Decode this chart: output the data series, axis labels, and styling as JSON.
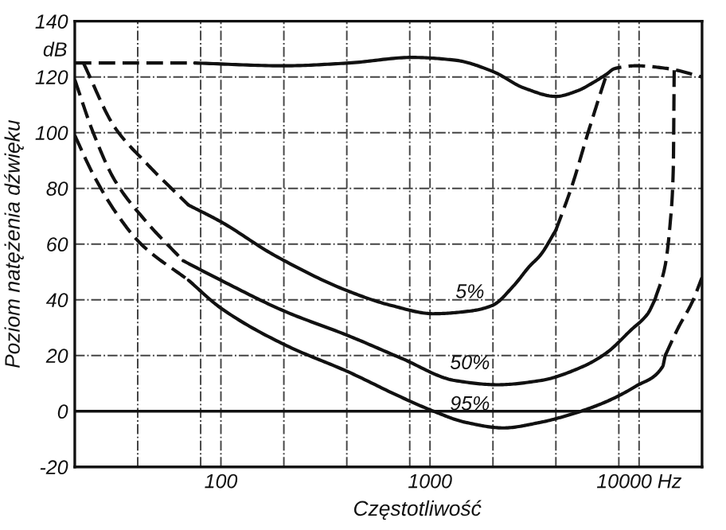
{
  "chart_data": {
    "type": "line",
    "xlabel": "Częstotliwość",
    "ylabel": "Poziom natężenia dźwięku",
    "annotations": [
      "dB"
    ],
    "log": "x",
    "xlim": [
      20,
      20000
    ],
    "ylim": [
      -20,
      140
    ],
    "xticks": [
      {
        "value": 40,
        "label": null
      },
      {
        "value": 80,
        "label": null
      },
      100,
      {
        "value": 200,
        "label": null
      },
      {
        "value": 400,
        "label": null
      },
      {
        "value": 800,
        "label": null
      },
      1000,
      {
        "value": 2000,
        "label": null
      },
      {
        "value": 4000,
        "label": null
      },
      {
        "value": 8000,
        "label": null
      },
      {
        "value": 10000,
        "label": "10000 Hz"
      }
    ],
    "yticks": [
      -20,
      0,
      20,
      40,
      60,
      80,
      100,
      120,
      140
    ],
    "grid": true,
    "ref_lines": [
      {
        "axis": "y",
        "value": 0,
        "line_style": "solid",
        "color": "#111111"
      }
    ],
    "series": [
      {
        "color": "#111111",
        "line_style": "dashed",
        "x": [
          20,
          75
        ],
        "values": [
          125,
          125
        ]
      },
      {
        "color": "#111111",
        "line_style": "solid",
        "x": [
          75,
          200,
          410,
          820,
          1320,
          1990,
          2820,
          4000,
          5070,
          6040,
          7000
        ],
        "values": [
          125,
          124,
          125,
          127,
          126,
          122,
          116,
          113,
          115,
          118,
          121
        ]
      },
      {
        "color": "#111111",
        "line_style": "dashed",
        "x": [
          7000,
          7640,
          9660,
          13700,
          20000
        ],
        "values": [
          121,
          123,
          124,
          123,
          120
        ]
      },
      {
        "color": "#111111",
        "line_style": "dashed",
        "x": [
          22,
          31,
          44,
          70
        ],
        "values": [
          125,
          102,
          89,
          74
        ]
      },
      {
        "name": "5%",
        "color": "#111111",
        "line_style": "solid",
        "x": [
          70,
          100,
          180,
          410,
          650,
          1040,
          1570,
          1990,
          2510,
          2990,
          3370,
          4000
        ],
        "values": [
          74,
          68,
          56,
          43,
          38,
          35,
          36,
          38,
          45,
          52,
          56,
          65
        ]
      },
      {
        "color": "#111111",
        "line_style": "dashed",
        "x": [
          4000,
          4780,
          5700,
          6590,
          7000
        ],
        "values": [
          65,
          81,
          100,
          115,
          121
        ]
      },
      {
        "color": "#111111",
        "line_style": "dashed",
        "x": [
          20,
          24.5,
          31,
          44,
          66
        ],
        "values": [
          119,
          100,
          83,
          68,
          54
        ]
      },
      {
        "name": "50%",
        "color": "#111111",
        "line_style": "solid",
        "x": [
          66,
          100,
          200,
          410,
          730,
          1320,
          2100,
          3370,
          5370,
          7000,
          9100,
          11000,
          11900
        ],
        "values": [
          54,
          47,
          36,
          27,
          19,
          11,
          9.5,
          11,
          16,
          21,
          29,
          35,
          40
        ]
      },
      {
        "color": "#111111",
        "line_style": "dashed",
        "x": [
          11900,
          13300,
          14100,
          14570,
          14720
        ],
        "values": [
          40,
          52,
          68,
          87,
          123
        ]
      },
      {
        "color": "#111111",
        "line_style": "dashed",
        "x": [
          20,
          24.5,
          31,
          41.5,
          70
        ],
        "values": [
          99,
          85,
          72,
          60,
          47
        ]
      },
      {
        "name": "95%",
        "color": "#111111",
        "line_style": "solid",
        "x": [
          70,
          100,
          200,
          410,
          730,
          1040,
          1480,
          2240,
          3370,
          4780,
          6760,
          9660,
          12950,
          13330
        ],
        "values": [
          47,
          37,
          24,
          14,
          5,
          0,
          -4,
          -6,
          -4,
          -1,
          3,
          9,
          16,
          20
        ]
      },
      {
        "color": "#111111",
        "line_style": "dashed",
        "x": [
          13330,
          15400,
          17900,
          20000
        ],
        "values": [
          20,
          30,
          39,
          48
        ]
      }
    ]
  }
}
